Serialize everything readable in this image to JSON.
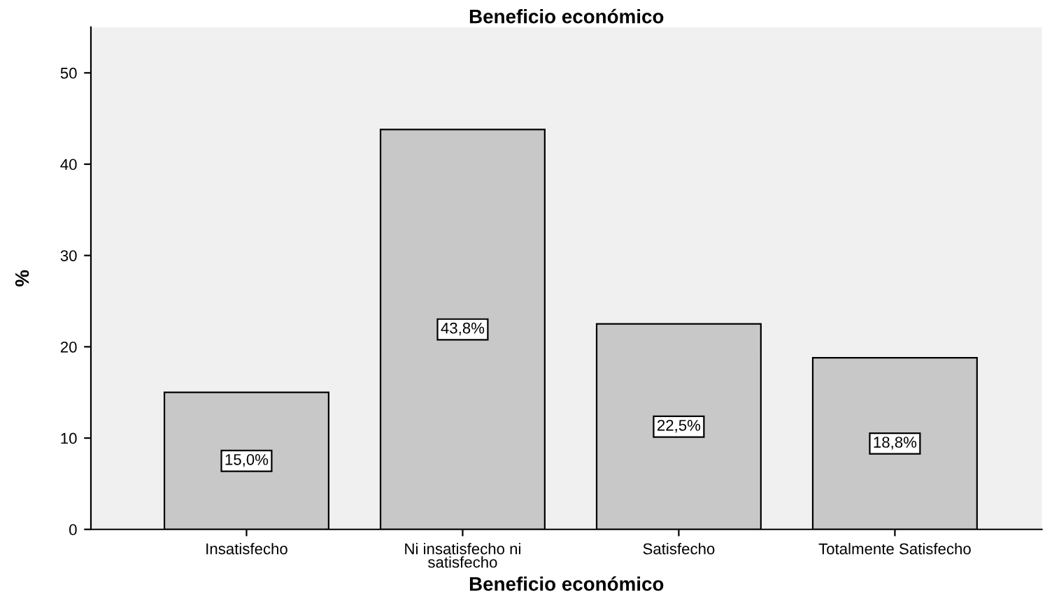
{
  "chart_data": {
    "type": "bar",
    "title": "Beneficio económico",
    "xlabel": "Beneficio económico",
    "ylabel": "%",
    "categories": [
      "Insatisfecho",
      "Ni insatisfecho ni\nsatisfecho",
      "Satisfecho",
      "Totalmente Satisfecho"
    ],
    "values": [
      15.0,
      43.8,
      22.5,
      18.8
    ],
    "value_labels": [
      "15,0%",
      "43,8%",
      "22,5%",
      "18,8%"
    ],
    "color": "#c8c8c8",
    "ylim": [
      0,
      55
    ],
    "yticks": [
      0,
      10,
      20,
      30,
      40,
      50
    ],
    "grid": false,
    "legend": false
  }
}
